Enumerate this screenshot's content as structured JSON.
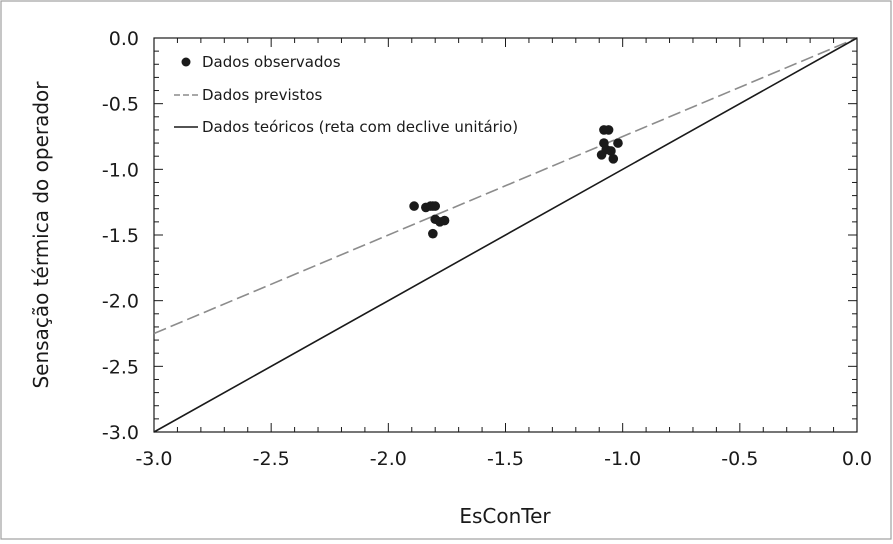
{
  "chart_data": {
    "type": "scatter",
    "title": "",
    "xlabel": "EsConTer",
    "ylabel": "Sensação térmica do operador",
    "xlim": [
      -3.0,
      0.0
    ],
    "ylim": [
      -3.0,
      0.0
    ],
    "x_ticks": [
      "-3.0",
      "-2.5",
      "-2.0",
      "-1.5",
      "-1.0",
      "-0.5",
      "0.0"
    ],
    "y_ticks": [
      "0.0",
      "-0.5",
      "-1.0",
      "-1.5",
      "-2.0",
      "-2.5",
      "-3.0"
    ],
    "grid": false,
    "legend_position": "top-left",
    "series": [
      {
        "name": "Dados observados",
        "kind": "points",
        "color": "#1a1a1a",
        "points": [
          {
            "x": -1.89,
            "y": -1.28
          },
          {
            "x": -1.84,
            "y": -1.29
          },
          {
            "x": -1.82,
            "y": -1.28
          },
          {
            "x": -1.81,
            "y": -1.28
          },
          {
            "x": -1.8,
            "y": -1.28
          },
          {
            "x": -1.8,
            "y": -1.38
          },
          {
            "x": -1.78,
            "y": -1.4
          },
          {
            "x": -1.76,
            "y": -1.39
          },
          {
            "x": -1.81,
            "y": -1.49
          },
          {
            "x": -1.08,
            "y": -0.7
          },
          {
            "x": -1.06,
            "y": -0.7
          },
          {
            "x": -1.08,
            "y": -0.8
          },
          {
            "x": -1.07,
            "y": -0.85
          },
          {
            "x": -1.05,
            "y": -0.86
          },
          {
            "x": -1.02,
            "y": -0.8
          },
          {
            "x": -1.09,
            "y": -0.89
          },
          {
            "x": -1.04,
            "y": -0.92
          }
        ]
      },
      {
        "name": "Dados previstos",
        "kind": "dashed-line",
        "color": "#8c8c8c",
        "points": [
          {
            "x": -3.0,
            "y": -2.25
          },
          {
            "x": 0.0,
            "y": 0.0
          }
        ]
      },
      {
        "name": "Dados teóricos (reta com declive unitário)",
        "kind": "solid-line",
        "color": "#1a1a1a",
        "points": [
          {
            "x": -3.0,
            "y": -3.0
          },
          {
            "x": 0.0,
            "y": 0.0
          }
        ]
      }
    ]
  }
}
